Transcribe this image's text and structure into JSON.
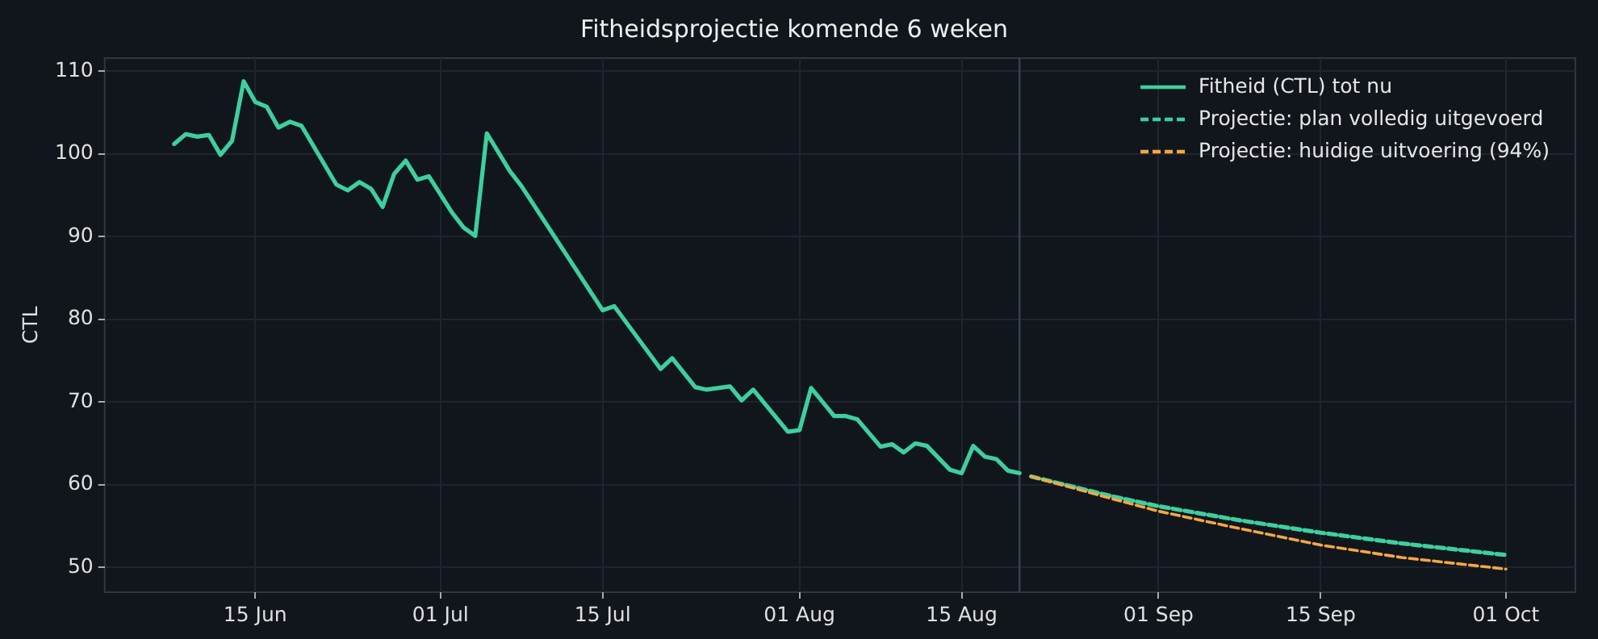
{
  "chart_data": {
    "type": "line",
    "title": "Fitheidsprojectie komende 6 weken",
    "ylabel": "CTL",
    "xlim": [
      "--06-02",
      "--10-07"
    ],
    "ylim": [
      47,
      111.6
    ],
    "xticks": [
      {
        "value": "--06-15",
        "label": "15 Jun"
      },
      {
        "value": "--07-01",
        "label": "01 Jul"
      },
      {
        "value": "--07-15",
        "label": "15 Jul"
      },
      {
        "value": "--08-01",
        "label": "01 Aug"
      },
      {
        "value": "--08-15",
        "label": "15 Aug"
      },
      {
        "value": "--09-01",
        "label": "01 Sep"
      },
      {
        "value": "--09-15",
        "label": "15 Sep"
      },
      {
        "value": "--10-01",
        "label": "01 Oct"
      }
    ],
    "yticks": [
      50,
      60,
      70,
      80,
      90,
      100,
      110
    ],
    "grid": true,
    "legend": "top right",
    "marker": "none",
    "ref_lines": [
      {
        "axis": "x",
        "value": "--08-20",
        "color": "#3a4150"
      }
    ],
    "series": [
      {
        "name": "Fitheid (CTL) tot nu",
        "color": "#3ecf9e",
        "line_style": "solid",
        "x": [
          "--06-08",
          "--06-09",
          "--06-10",
          "--06-11",
          "--06-12",
          "--06-13",
          "--06-14",
          "--06-15",
          "--06-16",
          "--06-17",
          "--06-18",
          "--06-19",
          "--06-22",
          "--06-23",
          "--06-24",
          "--06-25",
          "--06-26",
          "--06-27",
          "--06-28",
          "--06-29",
          "--06-30",
          "--07-02",
          "--07-03",
          "--07-04",
          "--07-05",
          "--07-07",
          "--07-08",
          "--07-15",
          "--07-16",
          "--07-20",
          "--07-21",
          "--07-23",
          "--07-24",
          "--07-26",
          "--07-27",
          "--07-28",
          "--07-31",
          "--08-01",
          "--08-02",
          "--08-04",
          "--08-05",
          "--08-06",
          "--08-08",
          "--08-09",
          "--08-10",
          "--08-11",
          "--08-12",
          "--08-14",
          "--08-15",
          "--08-16",
          "--08-17",
          "--08-18",
          "--08-19",
          "--08-20"
        ],
        "values": [
          101.2,
          102.4,
          102.1,
          102.3,
          99.9,
          101.6,
          108.8,
          106.3,
          105.7,
          103.2,
          103.9,
          103.4,
          96.3,
          95.6,
          96.6,
          95.8,
          93.6,
          97.6,
          99.2,
          96.9,
          97.3,
          92.9,
          91.1,
          90.1,
          102.5,
          97.9,
          96.1,
          81.1,
          81.6,
          74.0,
          75.3,
          71.8,
          71.5,
          71.9,
          70.2,
          71.5,
          66.4,
          66.6,
          71.7,
          68.3,
          68.3,
          67.9,
          64.6,
          64.9,
          63.9,
          65.0,
          64.7,
          61.8,
          61.4,
          64.7,
          63.4,
          63.1,
          61.7,
          61.4
        ]
      },
      {
        "name": "Projectie: plan volledig uitgevoerd",
        "color": "#3ecf9e",
        "line_style": "dashed",
        "x": [
          "--08-21",
          "--08-28",
          "--09-01",
          "--09-08",
          "--09-15",
          "--09-22",
          "--10-01"
        ],
        "values": [
          61.0,
          58.6,
          57.4,
          55.7,
          54.2,
          52.9,
          51.5
        ]
      },
      {
        "name": "Projectie: huidige uitvoering (94%)",
        "color": "#f5a742",
        "line_style": "dashed",
        "x": [
          "--08-21",
          "--08-28",
          "--09-01",
          "--09-08",
          "--09-15",
          "--09-22",
          "--10-01"
        ],
        "values": [
          61.0,
          58.3,
          56.8,
          54.7,
          52.7,
          51.2,
          49.8
        ]
      }
    ]
  }
}
